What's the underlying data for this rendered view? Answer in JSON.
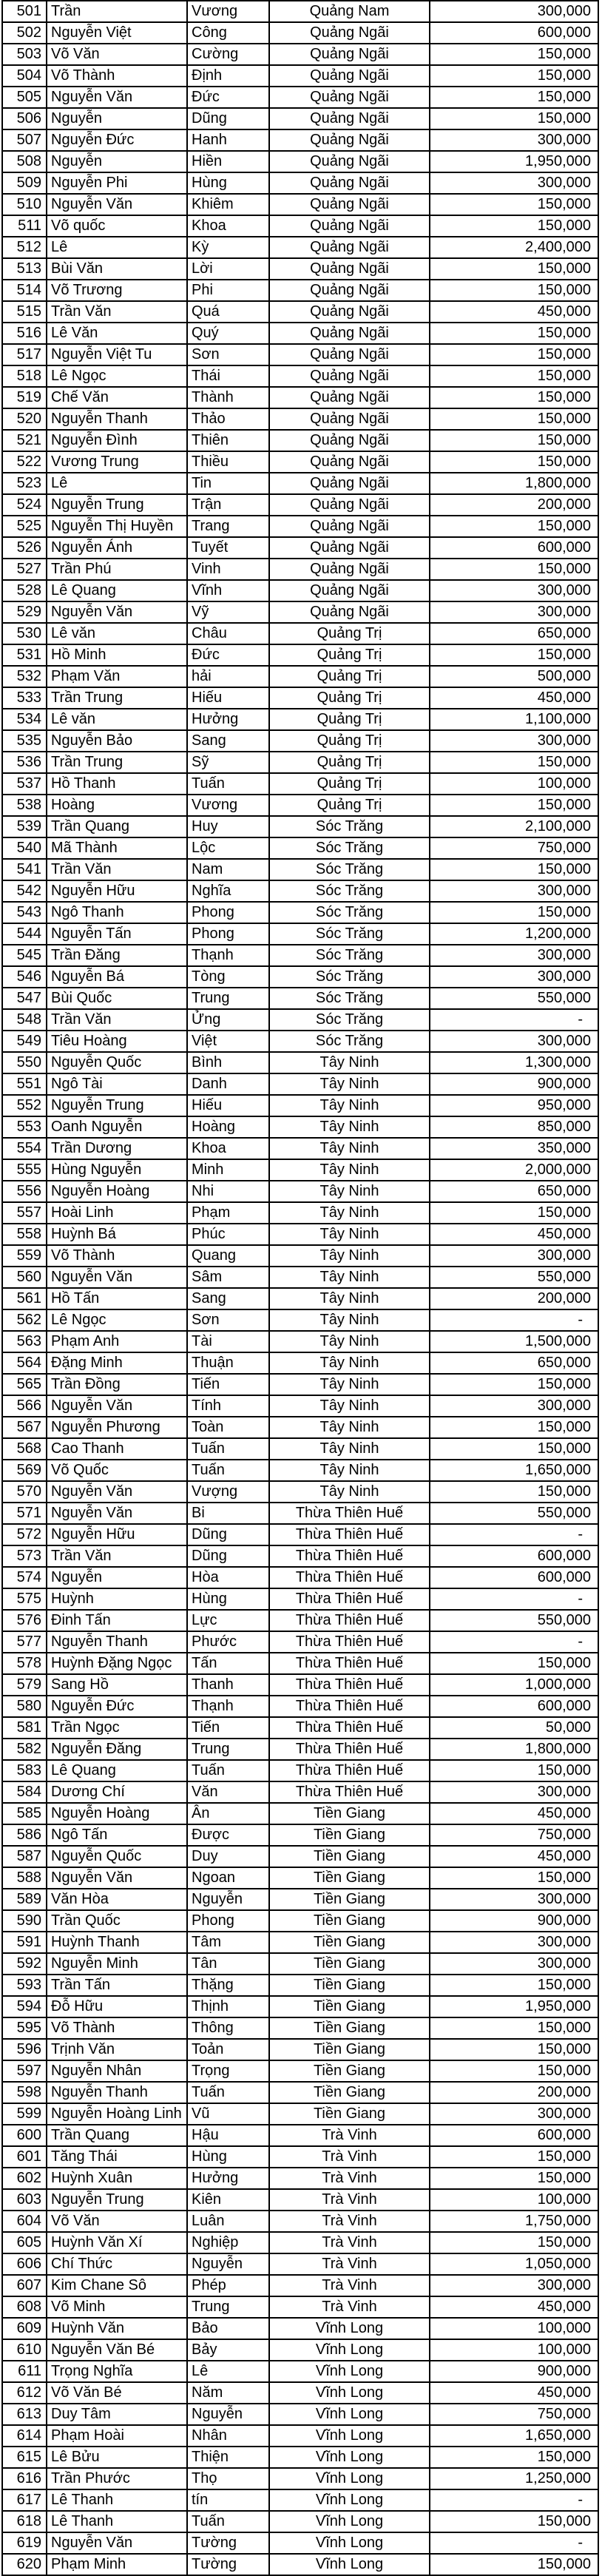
{
  "styles": {
    "background": "#ffffff",
    "text_color": "#000000",
    "border_color": "#000000"
  },
  "table": {
    "columns": [
      "row_number",
      "family_name",
      "given_name",
      "province",
      "amount"
    ],
    "rows": [
      [
        501,
        "Trần",
        "Vương",
        "Quảng Nam",
        "300,000"
      ],
      [
        502,
        "Nguyễn Việt",
        "Công",
        "Quảng Ngãi",
        "600,000"
      ],
      [
        503,
        "Võ Văn",
        "Cường",
        "Quảng Ngãi",
        "150,000"
      ],
      [
        504,
        "Võ Thành",
        "Định",
        "Quảng Ngãi",
        "150,000"
      ],
      [
        505,
        "Nguyễn Văn",
        "Đức",
        "Quảng Ngãi",
        "150,000"
      ],
      [
        506,
        "Nguyễn",
        "Dũng",
        "Quảng Ngãi",
        "150,000"
      ],
      [
        507,
        "Nguyễn Đức",
        "Hanh",
        "Quảng Ngãi",
        "300,000"
      ],
      [
        508,
        "Nguyễn",
        "Hiền",
        "Quảng Ngãi",
        "1,950,000"
      ],
      [
        509,
        "Nguyễn Phi",
        "Hùng",
        "Quảng Ngãi",
        "300,000"
      ],
      [
        510,
        "Nguyễn Văn",
        "Khiêm",
        "Quảng Ngãi",
        "150,000"
      ],
      [
        511,
        "Võ quốc",
        "Khoa",
        "Quảng Ngãi",
        "150,000"
      ],
      [
        512,
        "Lê",
        "Kỳ",
        "Quảng Ngãi",
        "2,400,000"
      ],
      [
        513,
        "Bùi Văn",
        "Lời",
        "Quảng Ngãi",
        "150,000"
      ],
      [
        514,
        "Võ Trương",
        "Phi",
        "Quảng Ngãi",
        "150,000"
      ],
      [
        515,
        "Trần Văn",
        "Quá",
        "Quảng Ngãi",
        "450,000"
      ],
      [
        516,
        "Lê Văn",
        "Quý",
        "Quảng Ngãi",
        "150,000"
      ],
      [
        517,
        "Nguyễn Việt Tu",
        "Sơn",
        "Quảng Ngãi",
        "150,000"
      ],
      [
        518,
        "Lê Ngọc",
        "Thái",
        "Quảng Ngãi",
        "150,000"
      ],
      [
        519,
        "Chế Văn",
        "Thành",
        "Quảng Ngãi",
        "150,000"
      ],
      [
        520,
        "Nguyễn Thanh",
        "Thảo",
        "Quảng Ngãi",
        "150,000"
      ],
      [
        521,
        "Nguyễn Đình",
        "Thiên",
        "Quảng Ngãi",
        "150,000"
      ],
      [
        522,
        "Vương Trung",
        "Thiều",
        "Quảng Ngãi",
        "150,000"
      ],
      [
        523,
        "Lê",
        "Tin",
        "Quảng Ngãi",
        "1,800,000"
      ],
      [
        524,
        "Nguyễn Trung",
        "Trận",
        "Quảng Ngãi",
        "200,000"
      ],
      [
        525,
        "Nguyễn Thị Huyền",
        "Trang",
        "Quảng Ngãi",
        "150,000"
      ],
      [
        526,
        "Nguyễn Ánh",
        "Tuyết",
        "Quảng Ngãi",
        "600,000"
      ],
      [
        527,
        "Trần Phú",
        "Vinh",
        "Quảng Ngãi",
        "150,000"
      ],
      [
        528,
        "Lê Quang",
        "Vĩnh",
        "Quảng Ngãi",
        "300,000"
      ],
      [
        529,
        "Nguyễn Văn",
        "Vỹ",
        "Quảng Ngãi",
        "300,000"
      ],
      [
        530,
        "Lê văn",
        "Châu",
        "Quảng Trị",
        "650,000"
      ],
      [
        531,
        "Hồ Minh",
        "Đức",
        "Quảng Trị",
        "150,000"
      ],
      [
        532,
        "Phạm Văn",
        "hải",
        "Quảng Trị",
        "500,000"
      ],
      [
        533,
        "Trần Trung",
        "Hiếu",
        "Quảng Trị",
        "450,000"
      ],
      [
        534,
        "Lê văn",
        "Hưởng",
        "Quảng Trị",
        "1,100,000"
      ],
      [
        535,
        "Nguyễn Bảo",
        "Sang",
        "Quảng Trị",
        "300,000"
      ],
      [
        536,
        "Trần Trung",
        "Sỹ",
        "Quảng Trị",
        "150,000"
      ],
      [
        537,
        "Hồ Thanh",
        "Tuấn",
        "Quảng Trị",
        "100,000"
      ],
      [
        538,
        "Hoàng",
        "Vương",
        "Quảng Trị",
        "150,000"
      ],
      [
        539,
        "Trần Quang",
        "Huy",
        "Sóc Trăng",
        "2,100,000"
      ],
      [
        540,
        "Mã Thành",
        "Lộc",
        "Sóc Trăng",
        "750,000"
      ],
      [
        541,
        "Trần Văn",
        "Nam",
        "Sóc Trăng",
        "150,000"
      ],
      [
        542,
        "Nguyễn Hữu",
        "Nghĩa",
        "Sóc Trăng",
        "300,000"
      ],
      [
        543,
        "Ngô Thanh",
        "Phong",
        "Sóc Trăng",
        "150,000"
      ],
      [
        544,
        "Nguyễn Tấn",
        "Phong",
        "Sóc Trăng",
        "1,200,000"
      ],
      [
        545,
        "Trần Đăng",
        "Thạnh",
        "Sóc Trăng",
        "300,000"
      ],
      [
        546,
        "Nguyễn Bá",
        "Tòng",
        "Sóc Trăng",
        "300,000"
      ],
      [
        547,
        "Bùi Quốc",
        "Trung",
        "Sóc Trăng",
        "550,000"
      ],
      [
        548,
        "Trần Văn",
        "Ửng",
        "Sóc Trăng",
        "-"
      ],
      [
        549,
        "Tiêu Hoàng",
        "Việt",
        "Sóc Trăng",
        "300,000"
      ],
      [
        550,
        "Nguyễn Quốc",
        "Bình",
        "Tây Ninh",
        "1,300,000"
      ],
      [
        551,
        "Ngô Tài",
        "Danh",
        "Tây Ninh",
        "900,000"
      ],
      [
        552,
        "Nguyễn Trung",
        "Hiếu",
        "Tây Ninh",
        "950,000"
      ],
      [
        553,
        "Oanh Nguyễn",
        "Hoàng",
        "Tây Ninh",
        "850,000"
      ],
      [
        554,
        "Trần Dương",
        "Khoa",
        "Tây Ninh",
        "350,000"
      ],
      [
        555,
        "Hùng Nguyễn",
        "Minh",
        "Tây Ninh",
        "2,000,000"
      ],
      [
        556,
        "Nguyễn Hoàng",
        "Nhi",
        "Tây Ninh",
        "650,000"
      ],
      [
        557,
        "Hoài Linh",
        "Phạm",
        "Tây Ninh",
        "150,000"
      ],
      [
        558,
        "Huỳnh Bá",
        "Phúc",
        "Tây Ninh",
        "450,000"
      ],
      [
        559,
        "Võ Thành",
        "Quang",
        "Tây Ninh",
        "300,000"
      ],
      [
        560,
        "Nguyễn Văn",
        "Sâm",
        "Tây Ninh",
        "550,000"
      ],
      [
        561,
        "Hồ Tấn",
        "Sang",
        "Tây Ninh",
        "200,000"
      ],
      [
        562,
        "Lê Ngọc",
        "Sơn",
        "Tây Ninh",
        "-"
      ],
      [
        563,
        "Phạm Anh",
        "Tài",
        "Tây Ninh",
        "1,500,000"
      ],
      [
        564,
        "Đặng Minh",
        "Thuận",
        "Tây Ninh",
        "650,000"
      ],
      [
        565,
        "Trần Đồng",
        "Tiến",
        "Tây Ninh",
        "150,000"
      ],
      [
        566,
        "Nguyễn Văn",
        "Tính",
        "Tây Ninh",
        "300,000"
      ],
      [
        567,
        "Nguyễn Phương",
        "Toàn",
        "Tây Ninh",
        "150,000"
      ],
      [
        568,
        "Cao Thanh",
        "Tuấn",
        "Tây Ninh",
        "150,000"
      ],
      [
        569,
        "Võ Quốc",
        "Tuấn",
        "Tây Ninh",
        "1,650,000"
      ],
      [
        570,
        "Nguyễn Văn",
        "Vượng",
        "Tây Ninh",
        "150,000"
      ],
      [
        571,
        "Nguyễn Văn",
        "Bi",
        "Thừa Thiên Huế",
        "550,000"
      ],
      [
        572,
        "Nguyễn Hữu",
        "Dũng",
        "Thừa Thiên Huế",
        "-"
      ],
      [
        573,
        "Trần Văn",
        "Dũng",
        "Thừa Thiên Huế",
        "600,000"
      ],
      [
        574,
        "Nguyễn",
        "Hòa",
        "Thừa Thiên Huế",
        "600,000"
      ],
      [
        575,
        "Huỳnh",
        "Hùng",
        "Thừa Thiên Huế",
        "-"
      ],
      [
        576,
        "Đinh Tấn",
        "Lực",
        "Thừa Thiên Huế",
        "550,000"
      ],
      [
        577,
        "Nguyễn Thanh",
        "Phước",
        "Thừa Thiên Huế",
        "-"
      ],
      [
        578,
        "Huỳnh Đặng Ngọc",
        "Tấn",
        "Thừa Thiên Huế",
        "150,000"
      ],
      [
        579,
        "Sang Hồ",
        "Thanh",
        "Thừa Thiên Huế",
        "1,000,000"
      ],
      [
        580,
        "Nguyễn Đức",
        "Thạnh",
        "Thừa Thiên Huế",
        "600,000"
      ],
      [
        581,
        "Trần Ngọc",
        "Tiến",
        "Thừa Thiên Huế",
        "50,000"
      ],
      [
        582,
        "Nguyễn Đăng",
        "Trung",
        "Thừa Thiên Huế",
        "1,800,000"
      ],
      [
        583,
        "Lê Quang",
        "Tuấn",
        "Thừa Thiên Huế",
        "150,000"
      ],
      [
        584,
        "Dương Chí",
        "Văn",
        "Thừa Thiên Huế",
        "300,000"
      ],
      [
        585,
        "Nguyễn Hoàng",
        "Ân",
        "Tiền Giang",
        "450,000"
      ],
      [
        586,
        "Ngô Tấn",
        "Được",
        "Tiền Giang",
        "750,000"
      ],
      [
        587,
        "Nguyễn Quốc",
        "Duy",
        "Tiền Giang",
        "450,000"
      ],
      [
        588,
        "Nguyễn Văn",
        "Ngoan",
        "Tiền Giang",
        "150,000"
      ],
      [
        589,
        "Văn Hòa",
        "Nguyễn",
        "Tiền Giang",
        "300,000"
      ],
      [
        590,
        "Trần Quốc",
        "Phong",
        "Tiền Giang",
        "900,000"
      ],
      [
        591,
        "Huỳnh Thanh",
        "Tâm",
        "Tiền Giang",
        "300,000"
      ],
      [
        592,
        "Nguyễn Minh",
        "Tân",
        "Tiền Giang",
        "300,000"
      ],
      [
        593,
        "Trần Tấn",
        "Thặng",
        "Tiền Giang",
        "150,000"
      ],
      [
        594,
        "Đỗ Hữu",
        "Thịnh",
        "Tiền Giang",
        "1,950,000"
      ],
      [
        595,
        "Võ Thành",
        "Thông",
        "Tiền Giang",
        "150,000"
      ],
      [
        596,
        "Trịnh Văn",
        "Toản",
        "Tiền Giang",
        "150,000"
      ],
      [
        597,
        "Nguyễn Nhân",
        "Trọng",
        "Tiền Giang",
        "150,000"
      ],
      [
        598,
        "Nguyễn Thanh",
        "Tuấn",
        "Tiền Giang",
        "200,000"
      ],
      [
        599,
        "Nguyễn Hoàng Linh",
        "Vũ",
        "Tiền Giang",
        "300,000"
      ],
      [
        600,
        "Trần Quang",
        "Hậu",
        "Trà Vinh",
        "600,000"
      ],
      [
        601,
        "Tăng Thái",
        "Hùng",
        "Trà Vinh",
        "150,000"
      ],
      [
        602,
        "Huỳnh Xuân",
        "Hưởng",
        "Trà Vinh",
        "150,000"
      ],
      [
        603,
        "Nguyễn Trung",
        "Kiên",
        "Trà Vinh",
        "100,000"
      ],
      [
        604,
        "Võ Văn",
        "Luân",
        "Trà Vinh",
        "1,750,000"
      ],
      [
        605,
        "Huỳnh Văn Xí",
        "Nghiệp",
        "Trà Vinh",
        "150,000"
      ],
      [
        606,
        "Chí Thức",
        "Nguyễn",
        "Trà Vinh",
        "1,050,000"
      ],
      [
        607,
        "Kim Chane Sô",
        "Phép",
        "Trà Vinh",
        "300,000"
      ],
      [
        608,
        "Võ Minh",
        "Trung",
        "Trà Vinh",
        "450,000"
      ],
      [
        609,
        "Huỳnh Văn",
        "Bảo",
        "Vĩnh Long",
        "100,000"
      ],
      [
        610,
        "Nguyễn Văn Bé",
        "Bảy",
        "Vĩnh Long",
        "100,000"
      ],
      [
        611,
        "Trọng Nghĩa",
        "Lê",
        "Vĩnh Long",
        "900,000"
      ],
      [
        612,
        "Võ Văn Bé",
        "Năm",
        "Vĩnh Long",
        "450,000"
      ],
      [
        613,
        "Duy Tâm",
        "Nguyễn",
        "Vĩnh Long",
        "750,000"
      ],
      [
        614,
        "Phạm Hoài",
        "Nhân",
        "Vĩnh Long",
        "1,650,000"
      ],
      [
        615,
        "Lê Bửu",
        "Thiện",
        "Vĩnh Long",
        "150,000"
      ],
      [
        616,
        "Trần Phước",
        "Thọ",
        "Vĩnh Long",
        "1,250,000"
      ],
      [
        617,
        "Lê Thanh",
        "tín",
        "Vĩnh Long",
        "-"
      ],
      [
        618,
        "Lê Thanh",
        "Tuấn",
        "Vĩnh Long",
        "150,000"
      ],
      [
        619,
        "Nguyễn Văn",
        "Tường",
        "Vĩnh Long",
        "-"
      ],
      [
        620,
        "Phạm Minh",
        "Tường",
        "Vĩnh Long",
        "150,000"
      ]
    ]
  }
}
